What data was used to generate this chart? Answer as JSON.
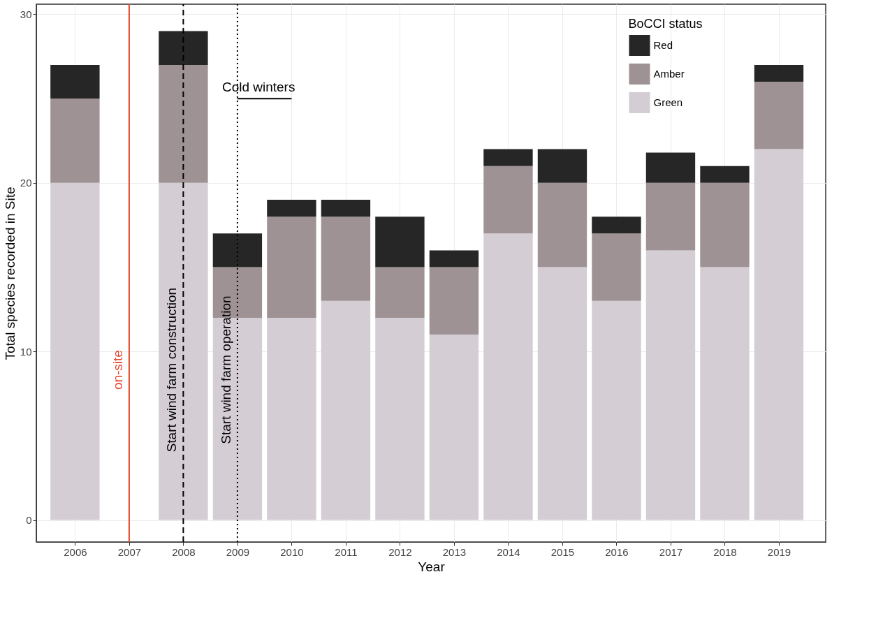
{
  "chart_data": {
    "type": "bar",
    "stacked": true,
    "xlabel": "Year",
    "ylabel": "Total species recorded in Site",
    "legend_title": "BoCCI status",
    "x": [
      2006,
      2008,
      2009,
      2010,
      2011,
      2012,
      2013,
      2014,
      2015,
      2016,
      2017,
      2018,
      2019
    ],
    "series": [
      {
        "name": "Green",
        "color": "#d4cdd4",
        "values": [
          20,
          20,
          12,
          12,
          13,
          12,
          11,
          17,
          15,
          13,
          16,
          15,
          22
        ]
      },
      {
        "name": "Amber",
        "color": "#9e9294",
        "values": [
          5,
          7,
          3,
          6,
          5,
          3,
          4,
          4,
          5,
          4,
          4,
          5,
          4
        ]
      },
      {
        "name": "Red",
        "color": "#262626",
        "values": [
          2,
          2,
          2,
          1,
          1,
          3,
          1,
          1,
          2,
          1,
          1.8,
          1,
          1
        ]
      },
      {
        "type": "line",
        "color": "#000000",
        "x": [
          2009,
          2010
        ],
        "values": [
          25,
          25
        ]
      }
    ],
    "marker": "none",
    "line_style": "solid",
    "annotations": [
      {
        "text": "Cold winters",
        "x": 2009,
        "y": 25
      }
    ],
    "xlim": [
      2005.35,
      2019.8
    ],
    "xticks": [
      2006,
      2007,
      2008,
      2009,
      2010,
      2011,
      2012,
      2013,
      2014,
      2015,
      2016,
      2017,
      2018,
      2019
    ],
    "ylim": [
      -1.3,
      30.6
    ],
    "yticks": [
      0,
      10,
      20,
      30
    ],
    "ref_lines": [
      {
        "axis": "x",
        "value": 2007,
        "label": "on-site",
        "color": "#e8452c",
        "line_style": "solid"
      },
      {
        "axis": "x",
        "value": 2008,
        "label": "Start wind farm construction",
        "color": "#000000",
        "line_style": "dashed"
      },
      {
        "axis": "x",
        "value": 2009,
        "label": "Start wind farm operation",
        "color": "#000000",
        "line_style": "dotted"
      }
    ],
    "grid": true,
    "legend": "top right"
  }
}
